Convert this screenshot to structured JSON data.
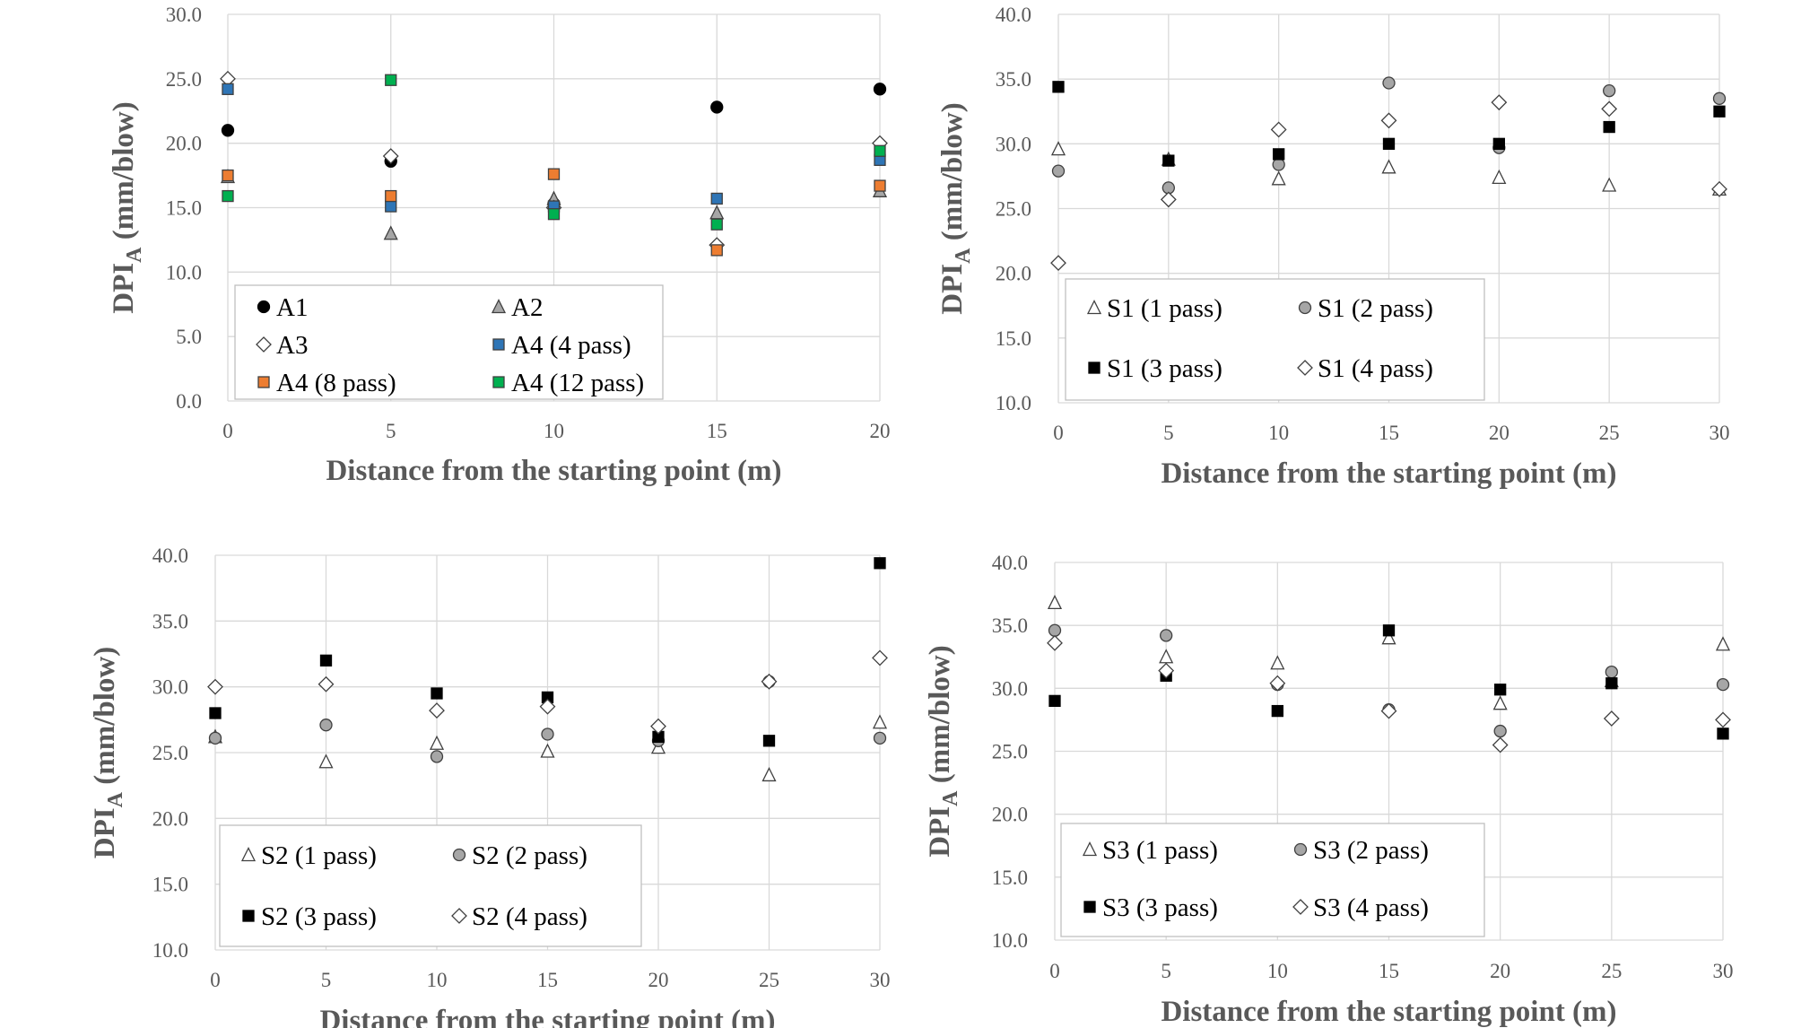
{
  "figure": {
    "y_axis_title": "DPI",
    "y_axis_subscript": "A",
    "y_axis_unit": " (mm/blow)"
  },
  "chart_data": [
    {
      "type": "scatter",
      "id": "A",
      "xlabel": "Distance from the starting point (m)",
      "ylabel": "DPIA (mm/blow)",
      "xlim": [
        0,
        20
      ],
      "xticks": [
        0,
        5,
        10,
        15,
        20
      ],
      "ylim": [
        0,
        30
      ],
      "yticks": [
        0,
        5,
        10,
        15,
        20,
        25,
        30
      ],
      "legend_columns": 2,
      "series": [
        {
          "name": "A1",
          "marker": "circle",
          "fill": "#000000",
          "x": [
            0,
            5,
            10,
            15,
            20
          ],
          "values": [
            21.0,
            18.6,
            15.3,
            22.8,
            24.2
          ]
        },
        {
          "name": "A2",
          "marker": "triangle",
          "fill": "#a6a6a6",
          "x": [
            0,
            5,
            10,
            15,
            20
          ],
          "values": [
            17.4,
            13.0,
            15.7,
            14.6,
            16.3
          ]
        },
        {
          "name": "A3",
          "marker": "diamond",
          "fill": "#ffffff",
          "x": [
            0,
            5,
            10,
            15,
            20
          ],
          "values": [
            25.0,
            19.0,
            15.0,
            12.1,
            20.0
          ]
        },
        {
          "name": "A4 (4 pass)",
          "marker": "square",
          "fill": "#2e75b6",
          "x": [
            0,
            5,
            10,
            15,
            20
          ],
          "values": [
            24.2,
            15.1,
            15.1,
            15.7,
            18.7
          ]
        },
        {
          "name": "A4 (8 pass)",
          "marker": "square",
          "fill": "#ed7d31",
          "x": [
            0,
            5,
            10,
            15,
            20
          ],
          "values": [
            17.5,
            15.9,
            17.6,
            11.7,
            16.7
          ]
        },
        {
          "name": "A4 (12 pass)",
          "marker": "square",
          "fill": "#00b050",
          "x": [
            0,
            5,
            10,
            15,
            20
          ],
          "values": [
            15.9,
            24.9,
            14.5,
            13.7,
            19.4
          ]
        }
      ]
    },
    {
      "type": "scatter",
      "id": "S1",
      "xlabel": "Distance from the starting point (m)",
      "ylabel": "DPIA (mm/blow)",
      "xlim": [
        0,
        30
      ],
      "xticks": [
        0,
        5,
        10,
        15,
        20,
        25,
        30
      ],
      "ylim": [
        10,
        40
      ],
      "yticks": [
        10,
        15,
        20,
        25,
        30,
        35,
        40
      ],
      "legend_columns": 2,
      "series": [
        {
          "name": "S1 (1 pass)",
          "marker": "triangle",
          "fill": "#ffffff",
          "x": [
            0,
            5,
            10,
            15,
            20,
            25,
            30
          ],
          "values": [
            29.6,
            28.8,
            27.3,
            28.2,
            27.4,
            26.8,
            26.5
          ]
        },
        {
          "name": "S1 (2 pass)",
          "marker": "circle",
          "fill": "#a6a6a6",
          "x": [
            0,
            5,
            10,
            15,
            20,
            25,
            30
          ],
          "values": [
            27.9,
            26.6,
            28.4,
            34.7,
            29.7,
            34.1,
            33.5
          ]
        },
        {
          "name": "S1 (3 pass)",
          "marker": "square",
          "fill": "#000000",
          "x": [
            0,
            5,
            10,
            15,
            20,
            25,
            30
          ],
          "values": [
            34.4,
            28.7,
            29.2,
            30.0,
            30.0,
            31.3,
            32.5
          ]
        },
        {
          "name": "S1 (4 pass)",
          "marker": "diamond",
          "fill": "#ffffff",
          "x": [
            0,
            5,
            10,
            15,
            20,
            25,
            30
          ],
          "values": [
            20.8,
            25.7,
            31.1,
            31.8,
            33.2,
            32.7,
            26.5
          ]
        }
      ]
    },
    {
      "type": "scatter",
      "id": "S2",
      "xlabel": "Distance from the starting point (m)",
      "ylabel": "DPIA (mm/blow)",
      "xlim": [
        0,
        30
      ],
      "xticks": [
        0,
        5,
        10,
        15,
        20,
        25,
        30
      ],
      "ylim": [
        10,
        40
      ],
      "yticks": [
        10,
        15,
        20,
        25,
        30,
        35,
        40
      ],
      "legend_columns": 2,
      "series": [
        {
          "name": "S2 (1 pass)",
          "marker": "triangle",
          "fill": "#ffffff",
          "x": [
            0,
            5,
            10,
            15,
            20,
            25,
            30
          ],
          "values": [
            26.2,
            24.3,
            25.7,
            25.1,
            25.4,
            23.3,
            27.3
          ]
        },
        {
          "name": "S2 (2 pass)",
          "marker": "circle",
          "fill": "#a6a6a6",
          "x": [
            0,
            5,
            10,
            15,
            20,
            25,
            30
          ],
          "values": [
            26.1,
            27.1,
            24.7,
            26.4,
            25.9,
            30.4,
            26.1
          ]
        },
        {
          "name": "S2 (3 pass)",
          "marker": "square",
          "fill": "#000000",
          "x": [
            0,
            5,
            10,
            15,
            20,
            25,
            30
          ],
          "values": [
            28.0,
            32.0,
            29.5,
            29.2,
            26.2,
            25.9,
            39.4
          ]
        },
        {
          "name": "S2 (4 pass)",
          "marker": "diamond",
          "fill": "#ffffff",
          "x": [
            0,
            5,
            10,
            15,
            20,
            25,
            30
          ],
          "values": [
            30.0,
            30.2,
            28.2,
            28.5,
            27.0,
            30.4,
            32.2
          ]
        }
      ]
    },
    {
      "type": "scatter",
      "id": "S3",
      "xlabel": "Distance from the starting point (m)",
      "ylabel": "DPIA (mm/blow)",
      "xlim": [
        0,
        30
      ],
      "xticks": [
        0,
        5,
        10,
        15,
        20,
        25,
        30
      ],
      "ylim": [
        10,
        40
      ],
      "yticks": [
        10,
        15,
        20,
        25,
        30,
        35,
        40
      ],
      "legend_columns": 2,
      "series": [
        {
          "name": "S3 (1 pass)",
          "marker": "triangle",
          "fill": "#ffffff",
          "x": [
            0,
            5,
            10,
            15,
            20,
            25,
            30
          ],
          "values": [
            36.8,
            32.5,
            32.0,
            34.0,
            28.8,
            30.6,
            33.5
          ]
        },
        {
          "name": "S3 (2 pass)",
          "marker": "circle",
          "fill": "#a6a6a6",
          "x": [
            0,
            5,
            10,
            15,
            20,
            25,
            30
          ],
          "values": [
            34.6,
            34.2,
            30.3,
            28.3,
            26.6,
            31.3,
            30.3
          ]
        },
        {
          "name": "S3 (3 pass)",
          "marker": "square",
          "fill": "#000000",
          "x": [
            0,
            5,
            10,
            15,
            20,
            25,
            30
          ],
          "values": [
            29.0,
            31.0,
            28.2,
            34.6,
            29.9,
            30.4,
            26.4
          ]
        },
        {
          "name": "S3 (4 pass)",
          "marker": "diamond",
          "fill": "#ffffff",
          "x": [
            0,
            5,
            10,
            15,
            20,
            25,
            30
          ],
          "values": [
            33.6,
            31.4,
            30.4,
            28.2,
            25.5,
            27.6,
            27.5
          ]
        }
      ]
    }
  ]
}
